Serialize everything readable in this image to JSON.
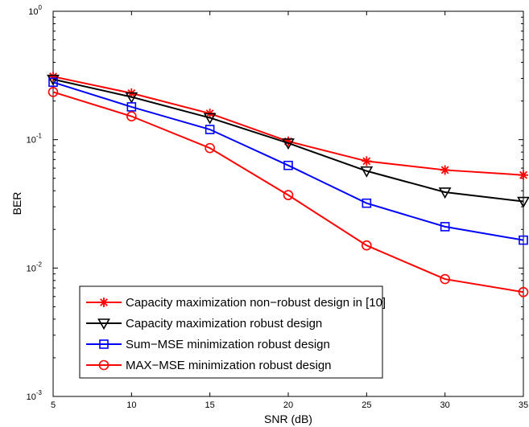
{
  "chart_data": {
    "type": "line",
    "xlabel": "SNR (dB)",
    "ylabel": "BER",
    "x": [
      5,
      10,
      15,
      20,
      25,
      30,
      35
    ],
    "xlim": [
      5,
      35
    ],
    "ylim": [
      0.001,
      1
    ],
    "yscale": "log",
    "x_ticks": [
      "5",
      "10",
      "15",
      "20",
      "25",
      "30",
      "35"
    ],
    "y_ticks": [
      {
        "base": "10",
        "exp": "0",
        "value": 1
      },
      {
        "base": "10",
        "exp": "-1",
        "value": 0.1
      },
      {
        "base": "10",
        "exp": "-2",
        "value": 0.01
      },
      {
        "base": "10",
        "exp": "-3",
        "value": 0.001
      }
    ],
    "grid": false,
    "legend_position": "bottom-left",
    "series": [
      {
        "name": "Capacity maximization non−robust design in [10]",
        "color": "#ff0000",
        "marker": "asterisk",
        "values": [
          0.31,
          0.23,
          0.16,
          0.097,
          0.068,
          0.058,
          0.053
        ]
      },
      {
        "name": "Capacity maximization robust design",
        "color": "#000000",
        "marker": "triangle-down",
        "values": [
          0.295,
          0.215,
          0.148,
          0.094,
          0.057,
          0.039,
          0.033
        ]
      },
      {
        "name": "Sum−MSE minimization robust design",
        "color": "#0000ff",
        "marker": "square",
        "values": [
          0.28,
          0.18,
          0.12,
          0.063,
          0.032,
          0.021,
          0.0165
        ]
      },
      {
        "name": "MAX−MSE minimization robust design",
        "color": "#ff0000",
        "marker": "circle",
        "values": [
          0.235,
          0.152,
          0.086,
          0.037,
          0.015,
          0.0082,
          0.0065
        ]
      }
    ]
  }
}
